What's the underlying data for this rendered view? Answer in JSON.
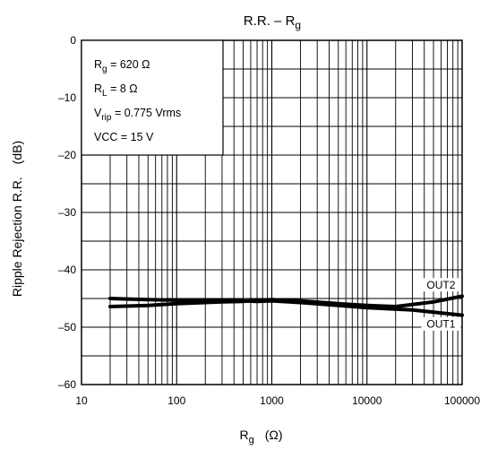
{
  "chart_data": {
    "type": "line",
    "title": {
      "main": "R.R. – R",
      "sub": "g"
    },
    "xlabel": {
      "main": "R",
      "sub": "g",
      "unit": "(Ω)"
    },
    "ylabel": {
      "text": "Ripple Rejection R.R.",
      "unit": "(dB)"
    },
    "x_scale": "log",
    "xlim": [
      10,
      100000
    ],
    "ylim": [
      -60,
      0
    ],
    "x_ticks": [
      10,
      100,
      1000,
      10000,
      100000
    ],
    "x_tick_labels": [
      "10",
      "100",
      "1000",
      "10000",
      "100000"
    ],
    "y_ticks": [
      0,
      -10,
      -20,
      -30,
      -40,
      -50,
      -60
    ],
    "y_tick_labels": [
      "0",
      "–10",
      "–20",
      "–30",
      "–40",
      "–50",
      "–60"
    ],
    "grid": true,
    "conditions": [
      {
        "main": "R",
        "sub": "g",
        "rest": " = 620 Ω"
      },
      {
        "main": "R",
        "sub": "L",
        "rest": " = 8 Ω"
      },
      {
        "main": "V",
        "sub": "rip",
        "rest": " = 0.775 Vrms"
      },
      {
        "main": "VCC",
        "sub": "",
        "rest": " = 15 V"
      }
    ],
    "series": [
      {
        "name": "OUT1",
        "x": [
          20,
          50,
          100,
          300,
          500,
          700,
          1000,
          2000,
          5000,
          10000,
          30000,
          100000
        ],
        "y": [
          -45.0,
          -45.2,
          -45.3,
          -45.3,
          -45.4,
          -45.5,
          -45.4,
          -45.7,
          -46.2,
          -46.6,
          -47.0,
          -47.9
        ]
      },
      {
        "name": "OUT2",
        "x": [
          20,
          50,
          100,
          300,
          500,
          700,
          1000,
          2000,
          5000,
          10000,
          20000,
          50000,
          100000
        ],
        "y": [
          -46.4,
          -46.2,
          -45.9,
          -45.6,
          -45.5,
          -45.3,
          -45.2,
          -45.4,
          -45.9,
          -46.2,
          -46.4,
          -45.6,
          -44.6
        ]
      }
    ],
    "series_labels": {
      "out1": "OUT1",
      "out2": "OUT2"
    }
  },
  "colors": {
    "background": "#ffffff",
    "line": "#000000",
    "grid": "#000000"
  }
}
